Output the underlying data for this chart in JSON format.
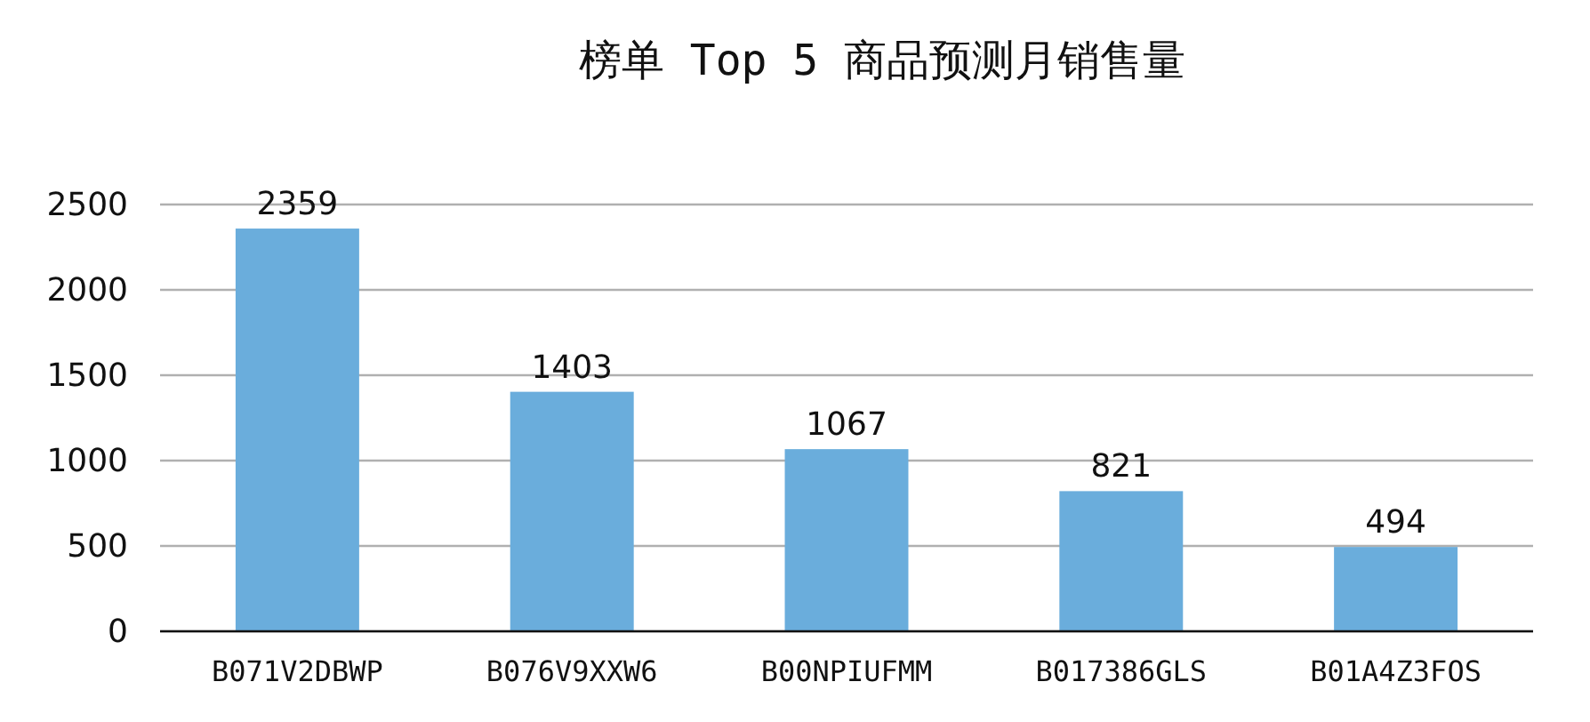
{
  "chart_data": {
    "type": "bar",
    "title": "榜单 Top 5 商品预测月销售量",
    "categories": [
      "B071V2DBWP",
      "B076V9XXW6",
      "B00NPIUFMM",
      "B017386GLS",
      "B01A4Z3FOS"
    ],
    "values": [
      2359,
      1403,
      1067,
      821,
      494
    ],
    "color": "#6aaddc",
    "ylim": [
      0,
      2500
    ],
    "yticks": [
      0,
      500,
      1000,
      1500,
      2000,
      2500
    ],
    "grid": "y",
    "data_labels": true
  }
}
